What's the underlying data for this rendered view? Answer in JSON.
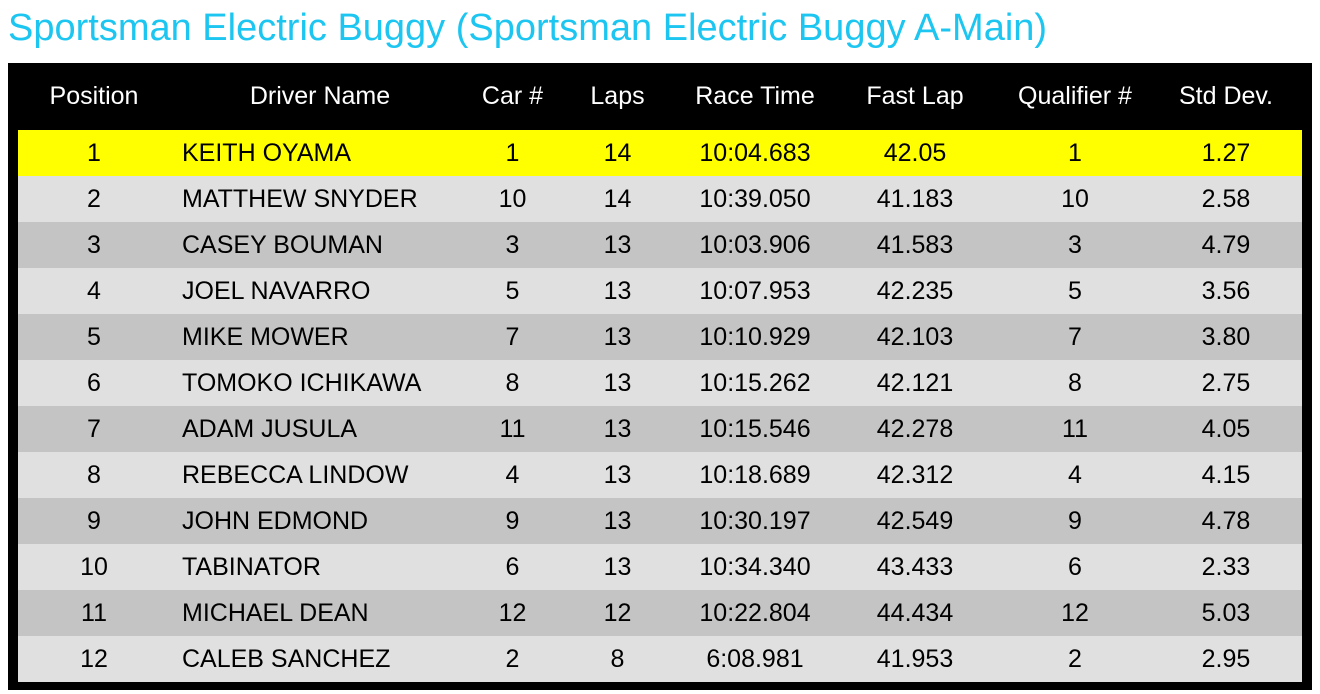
{
  "title": "Sportsman Electric Buggy (Sportsman Electric Buggy A-Main)",
  "table": {
    "header": [
      "Position",
      "Driver Name",
      "Car #",
      "Laps",
      "Race Time",
      "Fast Lap",
      "Qualifier #",
      "Std Dev."
    ],
    "rows": [
      [
        "1",
        "KEITH OYAMA",
        "1",
        "14",
        "10:04.683",
        "42.05",
        "1",
        "1.27"
      ],
      [
        "2",
        "MATTHEW SNYDER",
        "10",
        "14",
        "10:39.050",
        "41.183",
        "10",
        "2.58"
      ],
      [
        "3",
        "CASEY BOUMAN",
        "3",
        "13",
        "10:03.906",
        "41.583",
        "3",
        "4.79"
      ],
      [
        "4",
        "JOEL NAVARRO",
        "5",
        "13",
        "10:07.953",
        "42.235",
        "5",
        "3.56"
      ],
      [
        "5",
        "MIKE MOWER",
        "7",
        "13",
        "10:10.929",
        "42.103",
        "7",
        "3.80"
      ],
      [
        "6",
        "TOMOKO ICHIKAWA",
        "8",
        "13",
        "10:15.262",
        "42.121",
        "8",
        "2.75"
      ],
      [
        "7",
        "ADAM JUSULA",
        "11",
        "13",
        "10:15.546",
        "42.278",
        "11",
        "4.05"
      ],
      [
        "8",
        "REBECCA LINDOW",
        "4",
        "13",
        "10:18.689",
        "42.312",
        "4",
        "4.15"
      ],
      [
        "9",
        "JOHN EDMOND",
        "9",
        "13",
        "10:30.197",
        "42.549",
        "9",
        "4.78"
      ],
      [
        "10",
        "TABINATOR",
        "6",
        "13",
        "10:34.340",
        "43.433",
        "6",
        "2.33"
      ],
      [
        "11",
        "MICHAEL DEAN",
        "12",
        "12",
        "10:22.804",
        "44.434",
        "12",
        "5.03"
      ],
      [
        "12",
        "CALEB SANCHEZ",
        "2",
        "8",
        "6:08.981",
        "41.953",
        "2",
        "2.95"
      ]
    ]
  }
}
